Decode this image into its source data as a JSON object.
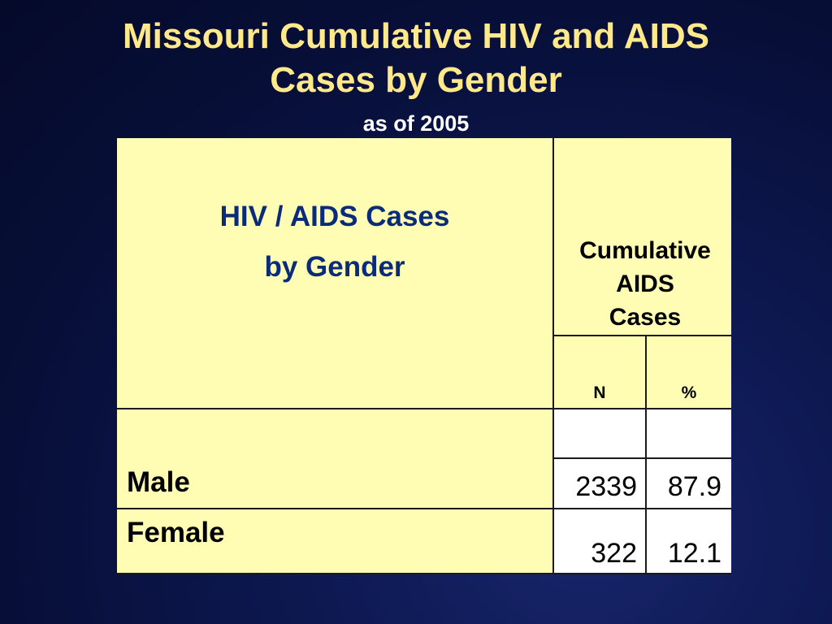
{
  "slide": {
    "title_line1": "Missouri Cumulative HIV and AIDS",
    "title_line2": "Cases by Gender",
    "subtitle": "as of 2005"
  },
  "table": {
    "header_label_line1": "HIV / AIDS Cases",
    "header_label_line2": "by Gender",
    "group_header_line1": "Cumulative",
    "group_header_line2": "AIDS",
    "group_header_line3": "Cases",
    "col_n": "N",
    "col_pct": "%",
    "rows": [
      {
        "label": "Male",
        "n": "2339",
        "pct": "87.9"
      },
      {
        "label": "Female",
        "n": "322",
        "pct": "12.1"
      }
    ]
  }
}
